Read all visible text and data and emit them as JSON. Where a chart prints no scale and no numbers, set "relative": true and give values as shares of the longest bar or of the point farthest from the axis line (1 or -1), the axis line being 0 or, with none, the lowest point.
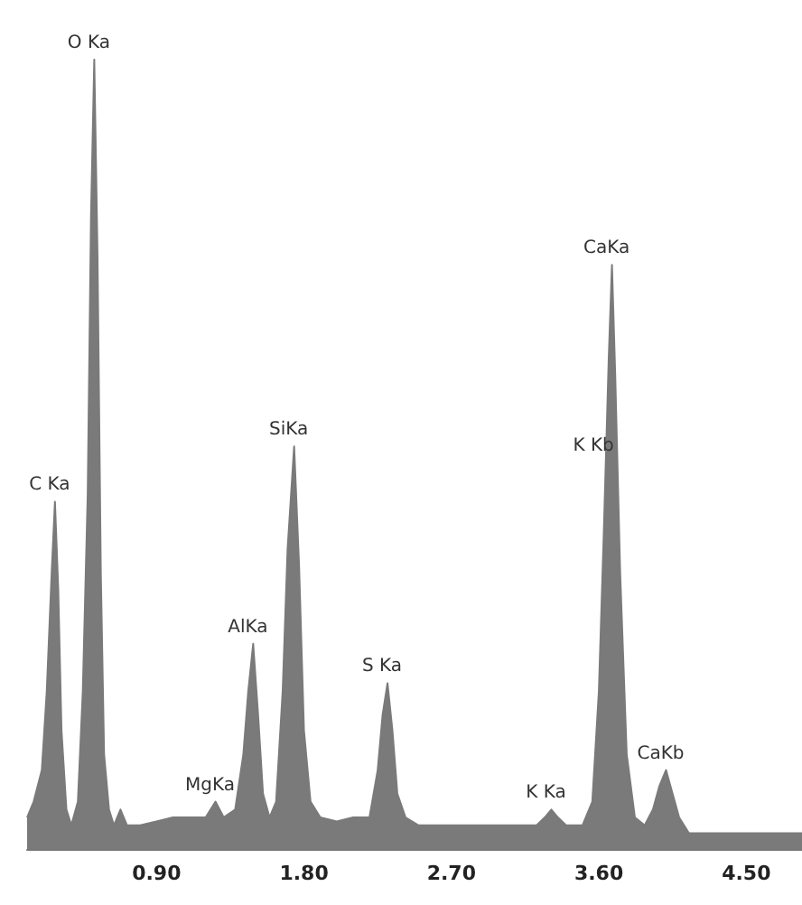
{
  "chart_data": {
    "type": "area",
    "relative": true,
    "color": "#7a7a7a",
    "grid": false,
    "marker": "none",
    "tick_labels": "x",
    "xlim": [
      0.11,
      4.84
    ],
    "xticks": [
      {
        "value": 0.9,
        "label": "0.90"
      },
      {
        "value": 1.8,
        "label": "1.80"
      },
      {
        "value": 2.7,
        "label": "2.70"
      },
      {
        "value": 3.6,
        "label": "3.60"
      },
      {
        "value": 4.5,
        "label": "4.50"
      }
    ],
    "x": [
      0.11,
      0.15,
      0.2,
      0.23,
      0.26,
      0.28,
      0.3,
      0.32,
      0.35,
      0.38,
      0.42,
      0.45,
      0.48,
      0.5,
      0.52,
      0.54,
      0.56,
      0.58,
      0.61,
      0.64,
      0.68,
      0.72,
      0.8,
      0.9,
      1.0,
      1.1,
      1.2,
      1.26,
      1.31,
      1.38,
      1.43,
      1.46,
      1.49,
      1.52,
      1.55,
      1.59,
      1.63,
      1.67,
      1.7,
      1.74,
      1.77,
      1.8,
      1.84,
      1.9,
      2.0,
      2.1,
      2.2,
      2.25,
      2.28,
      2.31,
      2.34,
      2.37,
      2.42,
      2.5,
      2.7,
      2.9,
      3.1,
      3.22,
      3.27,
      3.31,
      3.35,
      3.4,
      3.5,
      3.56,
      3.6,
      3.63,
      3.66,
      3.68,
      3.7,
      3.73,
      3.77,
      3.82,
      3.88,
      3.93,
      3.97,
      4.01,
      4.05,
      4.09,
      4.15,
      4.3,
      4.5,
      4.7,
      4.84
    ],
    "values": [
      0.04,
      0.06,
      0.1,
      0.2,
      0.35,
      0.44,
      0.33,
      0.15,
      0.05,
      0.03,
      0.06,
      0.2,
      0.45,
      0.8,
      1,
      0.75,
      0.35,
      0.12,
      0.05,
      0.03,
      0.05,
      0.03,
      0.03,
      0.035,
      0.04,
      0.04,
      0.04,
      0.06,
      0.04,
      0.05,
      0.12,
      0.2,
      0.26,
      0.17,
      0.07,
      0.04,
      0.06,
      0.2,
      0.38,
      0.51,
      0.36,
      0.15,
      0.06,
      0.04,
      0.035,
      0.04,
      0.04,
      0.1,
      0.17,
      0.21,
      0.15,
      0.07,
      0.04,
      0.03,
      0.03,
      0.03,
      0.03,
      0.03,
      0.04,
      0.05,
      0.04,
      0.03,
      0.03,
      0.06,
      0.2,
      0.4,
      0.62,
      0.74,
      0.6,
      0.35,
      0.12,
      0.04,
      0.03,
      0.05,
      0.08,
      0.1,
      0.07,
      0.04,
      0.02,
      0.02,
      0.02,
      0.02,
      0.02
    ],
    "annotations": [
      {
        "text": "C Ka",
        "x": 0.28,
        "y": 0.44
      },
      {
        "text": "O Ka",
        "x": 0.52,
        "y": 1
      },
      {
        "text": "MgKa",
        "x": 1.26,
        "y": 0.06
      },
      {
        "text": "AlKa",
        "x": 1.49,
        "y": 0.26
      },
      {
        "text": "SiKa",
        "x": 1.74,
        "y": 0.51
      },
      {
        "text": "S Ka",
        "x": 2.31,
        "y": 0.21
      },
      {
        "text": "K Ka",
        "x": 3.31,
        "y": 0.05
      },
      {
        "text": "CaKa",
        "x": 3.68,
        "y": 0.74
      },
      {
        "text": "K Kb",
        "x": 3.6,
        "y": 0.49
      },
      {
        "text": "CaKb",
        "x": 4.01,
        "y": 0.1
      }
    ]
  }
}
